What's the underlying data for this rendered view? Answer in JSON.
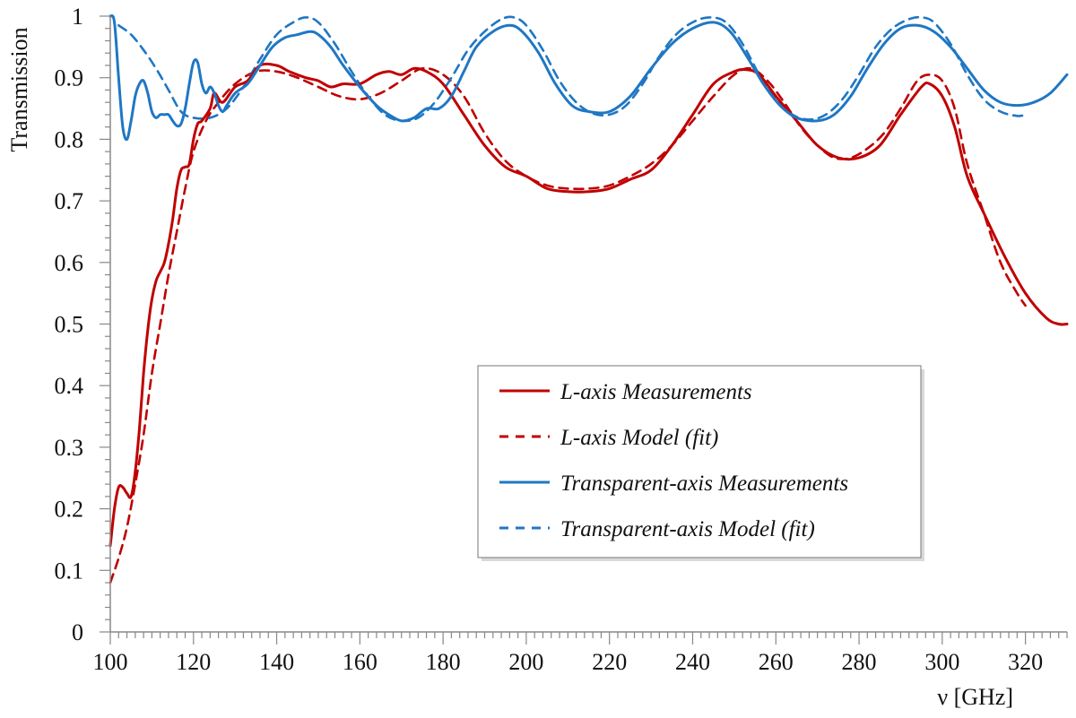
{
  "chart_data": {
    "type": "line",
    "xlabel": "ν [GHz]",
    "ylabel": "Transmission",
    "xlim": [
      100,
      330
    ],
    "ylim": [
      0,
      1
    ],
    "x_ticks": [
      100,
      120,
      140,
      160,
      180,
      200,
      220,
      240,
      260,
      280,
      300,
      320
    ],
    "y_ticks": [
      0,
      0.1,
      0.2,
      0.3,
      0.4,
      0.5,
      0.6,
      0.7,
      0.8,
      0.9,
      1
    ],
    "y_tick_labels": [
      "0",
      "0.1",
      "0.2",
      "0.3",
      "0.4",
      "0.5",
      "0.6",
      "0.7",
      "0.8",
      "0.9",
      "1"
    ],
    "grid": false,
    "legend_position": "center-right",
    "series": [
      {
        "name": "L-axis Measurements",
        "style": "solid",
        "color": "#c00000",
        "points": [
          [
            100,
            0.14
          ],
          [
            101,
            0.2
          ],
          [
            102,
            0.235
          ],
          [
            103,
            0.235
          ],
          [
            104,
            0.225
          ],
          [
            105,
            0.22
          ],
          [
            106,
            0.26
          ],
          [
            107,
            0.33
          ],
          [
            108,
            0.42
          ],
          [
            109,
            0.49
          ],
          [
            110,
            0.54
          ],
          [
            111,
            0.57
          ],
          [
            112,
            0.585
          ],
          [
            113,
            0.6
          ],
          [
            114,
            0.63
          ],
          [
            115,
            0.67
          ],
          [
            116,
            0.72
          ],
          [
            117,
            0.75
          ],
          [
            118,
            0.755
          ],
          [
            119,
            0.76
          ],
          [
            120,
            0.8
          ],
          [
            121,
            0.825
          ],
          [
            122,
            0.83
          ],
          [
            124,
            0.85
          ],
          [
            125,
            0.875
          ],
          [
            127,
            0.86
          ],
          [
            130,
            0.885
          ],
          [
            133,
            0.895
          ],
          [
            136,
            0.92
          ],
          [
            140,
            0.92
          ],
          [
            143,
            0.91
          ],
          [
            147,
            0.9
          ],
          [
            150,
            0.895
          ],
          [
            153,
            0.885
          ],
          [
            156,
            0.89
          ],
          [
            160,
            0.89
          ],
          [
            164,
            0.905
          ],
          [
            167,
            0.91
          ],
          [
            170,
            0.905
          ],
          [
            173,
            0.915
          ],
          [
            176,
            0.91
          ],
          [
            180,
            0.89
          ],
          [
            185,
            0.84
          ],
          [
            190,
            0.79
          ],
          [
            195,
            0.755
          ],
          [
            200,
            0.74
          ],
          [
            205,
            0.72
          ],
          [
            210,
            0.715
          ],
          [
            215,
            0.715
          ],
          [
            220,
            0.72
          ],
          [
            225,
            0.735
          ],
          [
            230,
            0.75
          ],
          [
            235,
            0.79
          ],
          [
            240,
            0.84
          ],
          [
            245,
            0.89
          ],
          [
            250,
            0.91
          ],
          [
            253,
            0.913
          ],
          [
            256,
            0.905
          ],
          [
            260,
            0.87
          ],
          [
            265,
            0.83
          ],
          [
            270,
            0.79
          ],
          [
            275,
            0.77
          ],
          [
            280,
            0.77
          ],
          [
            285,
            0.79
          ],
          [
            290,
            0.84
          ],
          [
            295,
            0.885
          ],
          [
            297,
            0.89
          ],
          [
            300,
            0.87
          ],
          [
            303,
            0.82
          ],
          [
            306,
            0.74
          ],
          [
            310,
            0.68
          ],
          [
            315,
            0.61
          ],
          [
            320,
            0.55
          ],
          [
            325,
            0.51
          ],
          [
            328,
            0.5
          ],
          [
            330,
            0.5
          ]
        ]
      },
      {
        "name": "L-axis Model (fit)",
        "style": "dashed",
        "color": "#c00000",
        "points": [
          [
            100,
            0.08
          ],
          [
            102,
            0.12
          ],
          [
            104,
            0.17
          ],
          [
            106,
            0.24
          ],
          [
            108,
            0.32
          ],
          [
            110,
            0.42
          ],
          [
            112,
            0.5
          ],
          [
            114,
            0.58
          ],
          [
            116,
            0.65
          ],
          [
            118,
            0.72
          ],
          [
            120,
            0.78
          ],
          [
            123,
            0.83
          ],
          [
            126,
            0.86
          ],
          [
            130,
            0.89
          ],
          [
            135,
            0.91
          ],
          [
            140,
            0.91
          ],
          [
            145,
            0.9
          ],
          [
            150,
            0.885
          ],
          [
            155,
            0.87
          ],
          [
            160,
            0.865
          ],
          [
            165,
            0.875
          ],
          [
            170,
            0.895
          ],
          [
            175,
            0.915
          ],
          [
            180,
            0.905
          ],
          [
            185,
            0.87
          ],
          [
            190,
            0.81
          ],
          [
            195,
            0.765
          ],
          [
            200,
            0.74
          ],
          [
            205,
            0.725
          ],
          [
            210,
            0.72
          ],
          [
            215,
            0.72
          ],
          [
            220,
            0.725
          ],
          [
            225,
            0.74
          ],
          [
            230,
            0.76
          ],
          [
            235,
            0.79
          ],
          [
            240,
            0.83
          ],
          [
            245,
            0.87
          ],
          [
            250,
            0.905
          ],
          [
            254,
            0.915
          ],
          [
            258,
            0.895
          ],
          [
            262,
            0.86
          ],
          [
            266,
            0.82
          ],
          [
            270,
            0.79
          ],
          [
            274,
            0.77
          ],
          [
            278,
            0.77
          ],
          [
            282,
            0.785
          ],
          [
            286,
            0.81
          ],
          [
            290,
            0.85
          ],
          [
            294,
            0.895
          ],
          [
            297,
            0.905
          ],
          [
            300,
            0.895
          ],
          [
            303,
            0.85
          ],
          [
            306,
            0.76
          ],
          [
            310,
            0.68
          ],
          [
            314,
            0.6
          ],
          [
            318,
            0.55
          ],
          [
            320,
            0.53
          ]
        ]
      },
      {
        "name": "Transparent-axis Measurements",
        "style": "solid",
        "color": "#1f77c4",
        "points": [
          [
            100,
            1.0
          ],
          [
            101,
            0.99
          ],
          [
            102,
            0.9
          ],
          [
            103,
            0.82
          ],
          [
            104,
            0.8
          ],
          [
            105,
            0.83
          ],
          [
            106,
            0.87
          ],
          [
            107,
            0.89
          ],
          [
            108,
            0.895
          ],
          [
            109,
            0.875
          ],
          [
            110,
            0.845
          ],
          [
            111,
            0.835
          ],
          [
            112,
            0.84
          ],
          [
            113,
            0.84
          ],
          [
            114,
            0.84
          ],
          [
            115,
            0.83
          ],
          [
            116,
            0.822
          ],
          [
            117,
            0.825
          ],
          [
            118,
            0.85
          ],
          [
            119,
            0.89
          ],
          [
            120,
            0.925
          ],
          [
            121,
            0.925
          ],
          [
            122,
            0.89
          ],
          [
            123,
            0.875
          ],
          [
            124,
            0.885
          ],
          [
            125,
            0.875
          ],
          [
            126,
            0.855
          ],
          [
            127,
            0.845
          ],
          [
            128,
            0.855
          ],
          [
            130,
            0.875
          ],
          [
            133,
            0.89
          ],
          [
            136,
            0.92
          ],
          [
            139,
            0.95
          ],
          [
            142,
            0.965
          ],
          [
            145,
            0.97
          ],
          [
            148,
            0.975
          ],
          [
            150,
            0.97
          ],
          [
            153,
            0.95
          ],
          [
            156,
            0.92
          ],
          [
            160,
            0.885
          ],
          [
            164,
            0.855
          ],
          [
            167,
            0.84
          ],
          [
            170,
            0.83
          ],
          [
            173,
            0.835
          ],
          [
            176,
            0.85
          ],
          [
            179,
            0.85
          ],
          [
            182,
            0.87
          ],
          [
            185,
            0.91
          ],
          [
            188,
            0.95
          ],
          [
            192,
            0.975
          ],
          [
            196,
            0.985
          ],
          [
            199,
            0.975
          ],
          [
            203,
            0.94
          ],
          [
            207,
            0.89
          ],
          [
            211,
            0.855
          ],
          [
            215,
            0.845
          ],
          [
            220,
            0.845
          ],
          [
            225,
            0.87
          ],
          [
            230,
            0.915
          ],
          [
            235,
            0.955
          ],
          [
            240,
            0.98
          ],
          [
            245,
            0.99
          ],
          [
            249,
            0.975
          ],
          [
            253,
            0.935
          ],
          [
            257,
            0.89
          ],
          [
            261,
            0.855
          ],
          [
            265,
            0.835
          ],
          [
            270,
            0.83
          ],
          [
            274,
            0.84
          ],
          [
            278,
            0.87
          ],
          [
            282,
            0.915
          ],
          [
            286,
            0.955
          ],
          [
            290,
            0.98
          ],
          [
            294,
            0.985
          ],
          [
            298,
            0.975
          ],
          [
            302,
            0.95
          ],
          [
            306,
            0.915
          ],
          [
            310,
            0.88
          ],
          [
            314,
            0.86
          ],
          [
            318,
            0.855
          ],
          [
            322,
            0.86
          ],
          [
            326,
            0.875
          ],
          [
            330,
            0.905
          ]
        ]
      },
      {
        "name": "Transparent-axis Model (fit)",
        "style": "dashed",
        "color": "#1f77c4",
        "points": [
          [
            102,
            0.985
          ],
          [
            105,
            0.97
          ],
          [
            108,
            0.945
          ],
          [
            111,
            0.915
          ],
          [
            114,
            0.88
          ],
          [
            117,
            0.845
          ],
          [
            120,
            0.835
          ],
          [
            124,
            0.835
          ],
          [
            128,
            0.85
          ],
          [
            132,
            0.885
          ],
          [
            136,
            0.93
          ],
          [
            140,
            0.97
          ],
          [
            144,
            0.99
          ],
          [
            147,
            0.998
          ],
          [
            150,
            0.99
          ],
          [
            154,
            0.955
          ],
          [
            158,
            0.91
          ],
          [
            162,
            0.87
          ],
          [
            166,
            0.84
          ],
          [
            170,
            0.83
          ],
          [
            174,
            0.835
          ],
          [
            178,
            0.86
          ],
          [
            182,
            0.9
          ],
          [
            186,
            0.945
          ],
          [
            190,
            0.975
          ],
          [
            194,
            0.995
          ],
          [
            197,
            0.998
          ],
          [
            200,
            0.985
          ],
          [
            204,
            0.945
          ],
          [
            208,
            0.895
          ],
          [
            212,
            0.86
          ],
          [
            216,
            0.842
          ],
          [
            220,
            0.84
          ],
          [
            224,
            0.855
          ],
          [
            228,
            0.89
          ],
          [
            232,
            0.935
          ],
          [
            236,
            0.97
          ],
          [
            240,
            0.99
          ],
          [
            244,
            0.998
          ],
          [
            248,
            0.99
          ],
          [
            252,
            0.955
          ],
          [
            256,
            0.905
          ],
          [
            260,
            0.865
          ],
          [
            264,
            0.84
          ],
          [
            268,
            0.832
          ],
          [
            272,
            0.84
          ],
          [
            276,
            0.865
          ],
          [
            280,
            0.905
          ],
          [
            284,
            0.95
          ],
          [
            288,
            0.98
          ],
          [
            292,
            0.995
          ],
          [
            295,
            0.998
          ],
          [
            298,
            0.99
          ],
          [
            302,
            0.955
          ],
          [
            306,
            0.905
          ],
          [
            310,
            0.865
          ],
          [
            314,
            0.845
          ],
          [
            318,
            0.838
          ],
          [
            320,
            0.84
          ]
        ]
      }
    ]
  }
}
